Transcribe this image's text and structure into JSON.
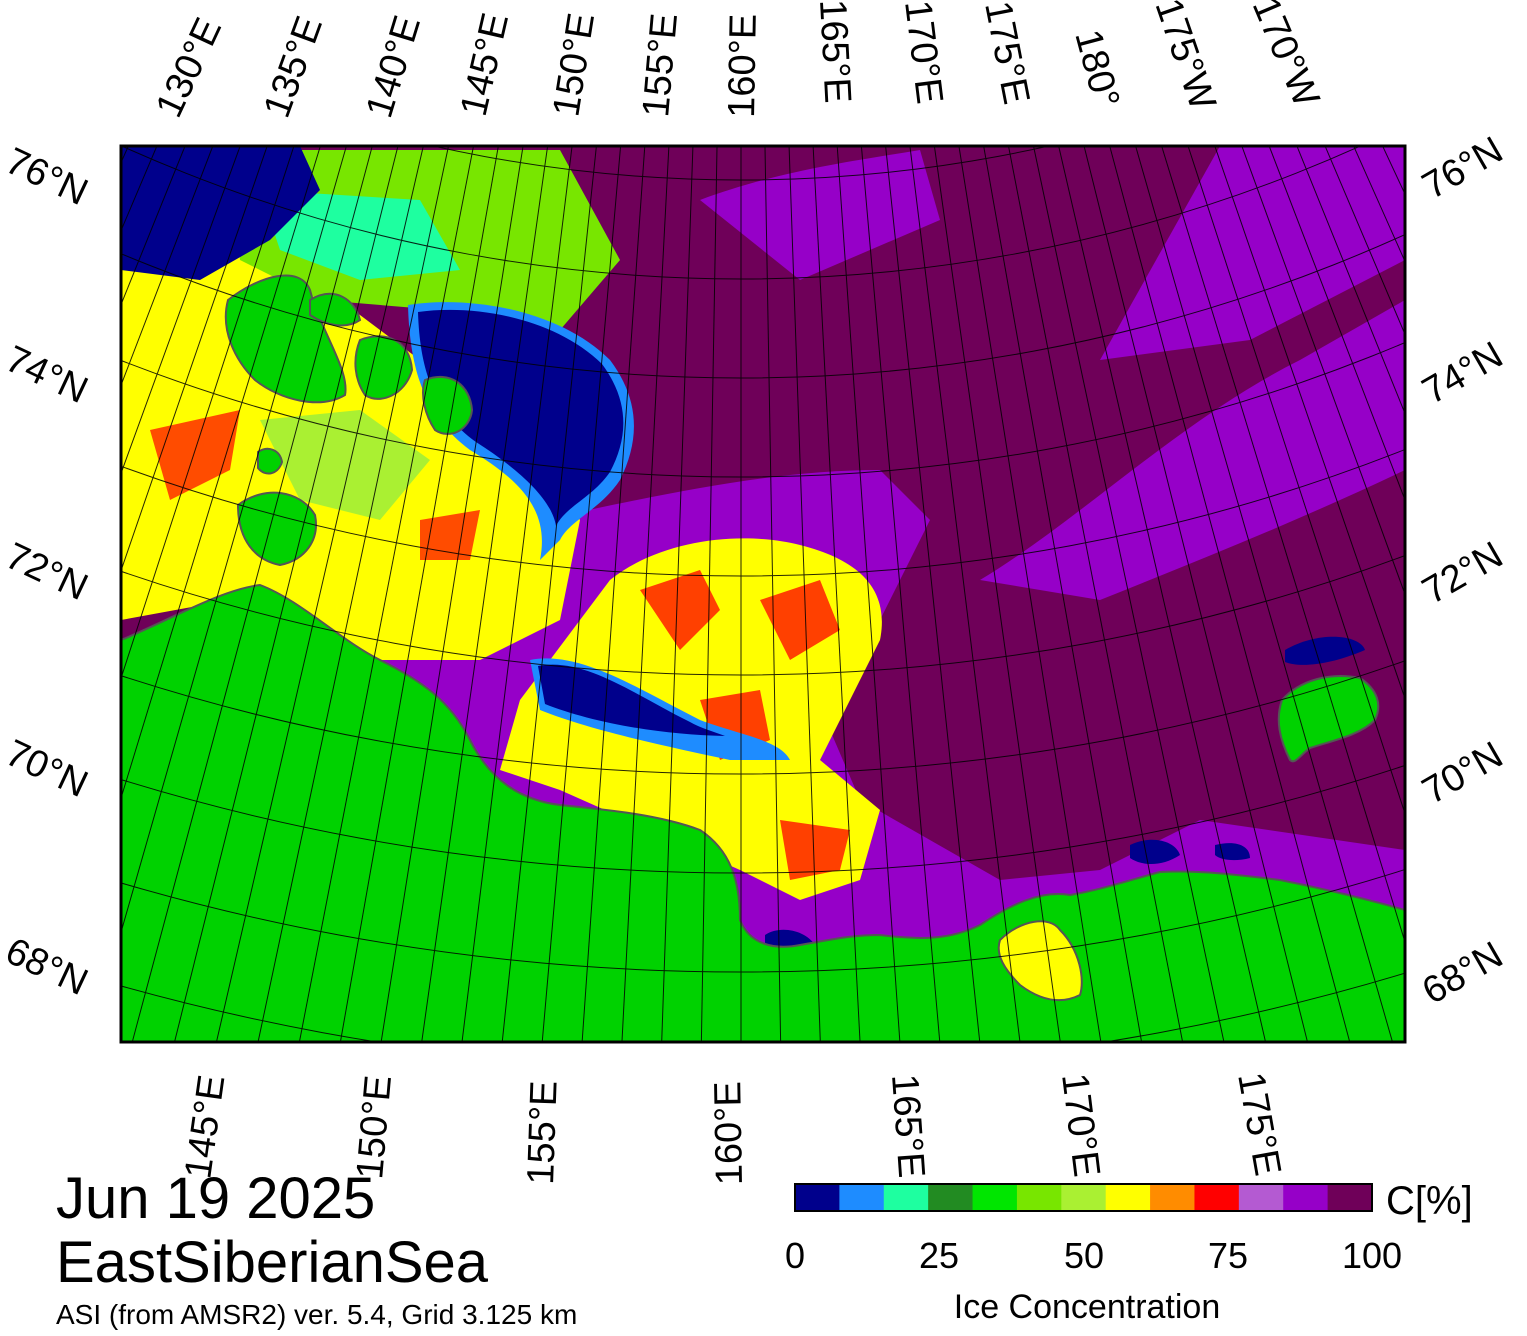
{
  "map": {
    "date": "Jun 19 2025",
    "region": "EastSiberianSea",
    "product": "ASI (from AMSR2) ver. 5.4,  Grid 3.125 km",
    "lat_labels_left": [
      "76°N",
      "74°N",
      "72°N",
      "70°N",
      "68°N"
    ],
    "lat_labels_right": [
      "76°N",
      "74°N",
      "72°N",
      "70°N",
      "68°N"
    ],
    "lon_labels_top": [
      "130°E",
      "135°E",
      "140°E",
      "145°E",
      "150°E",
      "155°E",
      "160°E",
      "165°E",
      "170°E",
      "175°E",
      "180°",
      "175°W",
      "170°W"
    ],
    "lon_labels_bottom": [
      "145°E",
      "150°E",
      "155°E",
      "160°E",
      "165°E",
      "170°E",
      "175°E"
    ],
    "colors": {
      "land": "#00d200",
      "open_water": "#00008c",
      "dense_ice": "#6f0059",
      "coastline": "#555555"
    }
  },
  "legend": {
    "title": "Ice Concentration",
    "unit": "C[%]",
    "ticks": [
      "0",
      "25",
      "50",
      "75",
      "100"
    ],
    "colors": [
      "#00008c",
      "#1e8cff",
      "#1effa0",
      "#228b22",
      "#00e600",
      "#78e600",
      "#aaf032",
      "#ffff00",
      "#ff8c00",
      "#ff0000",
      "#b45ad2",
      "#9600c8",
      "#6f0059"
    ]
  }
}
